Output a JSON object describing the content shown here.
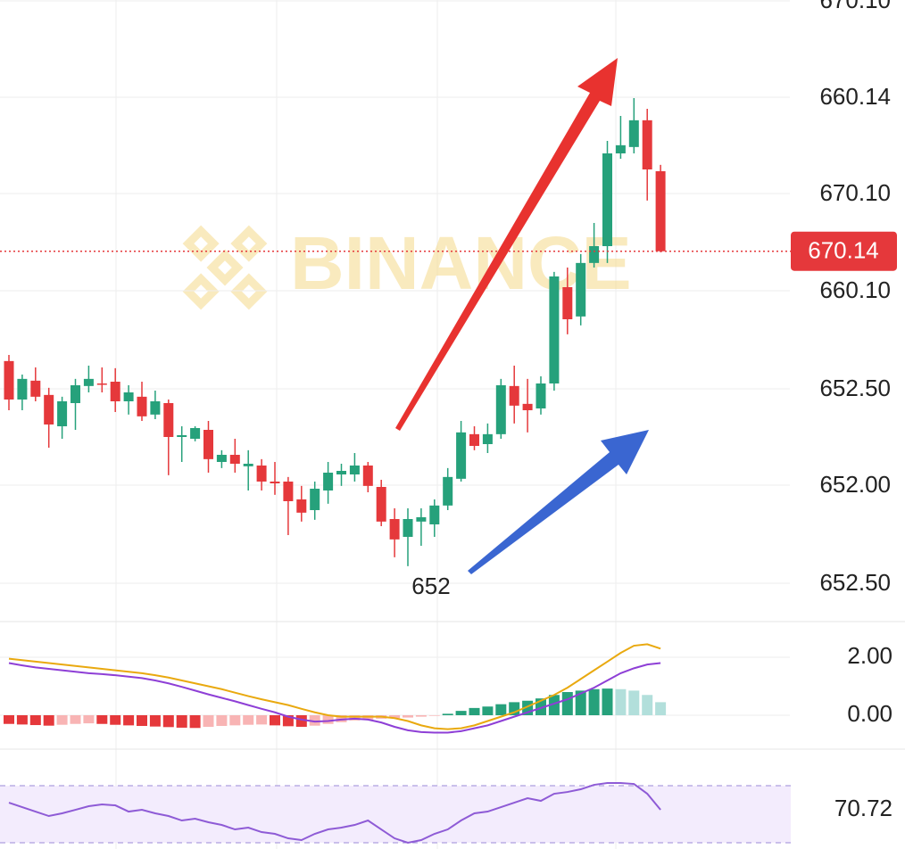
{
  "chart_data": [
    {
      "type": "candlestick",
      "watermark": "BINANCE",
      "y_axis_labels": [
        "670.10",
        "660.14",
        "670.10",
        "660.10",
        "652.50",
        "652.00",
        "652.50"
      ],
      "ylim": [
        655.5,
        680
      ],
      "up_color": "#26a17b",
      "down_color": "#e5383b",
      "open": [
        665.83,
        664.32,
        665.06,
        664.5,
        663.27,
        664.18,
        664.85,
        664.95,
        665.02,
        664.25,
        664.43,
        663.73,
        664.18,
        662.85,
        662.78,
        663.13,
        661.87,
        662.15,
        661.7,
        661.73,
        661.1,
        661.1,
        660.4,
        659.98,
        660.75,
        661.38,
        661.38,
        661.73,
        660.89,
        659.63,
        658.93,
        659.53,
        659.42,
        660.16,
        661.21,
        662.96,
        662.57,
        662.96,
        664.85,
        664.15,
        663.97,
        664.95,
        668.73,
        667.58,
        669.68,
        670.34,
        673.98,
        674.23,
        675.28,
        673.28
      ],
      "high": [
        666.07,
        665.3,
        665.58,
        664.78,
        664.43,
        665.13,
        665.65,
        665.58,
        665.55,
        664.88,
        665.02,
        664.67,
        664.32,
        663.27,
        663.27,
        663.48,
        662.33,
        662.78,
        662.33,
        661.98,
        661.87,
        661.28,
        660.93,
        661.1,
        661.87,
        661.8,
        662.22,
        661.87,
        661.17,
        660.05,
        660.05,
        660.05,
        660.4,
        661.63,
        663.48,
        663.27,
        663.38,
        665.13,
        665.65,
        665.13,
        665.23,
        669.33,
        669.5,
        670.03,
        671.25,
        674.47,
        675.45,
        676.15,
        675.73,
        673.53
      ],
      "low": [
        663.9,
        663.9,
        664.25,
        662.43,
        662.78,
        663.13,
        664.6,
        664.6,
        663.83,
        663.73,
        663.48,
        663.55,
        661.35,
        661.87,
        662.68,
        661.45,
        661.63,
        661.45,
        660.75,
        660.75,
        660.58,
        659.0,
        659.53,
        659.6,
        660.23,
        660.93,
        661.1,
        660.68,
        659.35,
        658.13,
        657.78,
        658.58,
        658.93,
        659.98,
        661.1,
        662.33,
        662.22,
        662.78,
        663.38,
        663.03,
        663.73,
        664.67,
        666.88,
        667.23,
        669.5,
        669.68,
        673.77,
        673.98,
        672.13,
        670.1
      ],
      "close": [
        664.32,
        665.13,
        664.43,
        663.34,
        664.25,
        664.88,
        665.13,
        664.94,
        664.25,
        664.6,
        663.66,
        664.25,
        662.85,
        662.92,
        663.2,
        661.98,
        662.15,
        661.8,
        661.8,
        661.1,
        661.03,
        660.33,
        659.88,
        660.82,
        661.45,
        661.52,
        661.73,
        660.93,
        659.53,
        658.83,
        659.63,
        659.7,
        660.16,
        661.28,
        663.03,
        662.5,
        662.96,
        664.88,
        664.08,
        663.9,
        664.95,
        669.15,
        667.47,
        669.68,
        670.34,
        673.98,
        674.3,
        675.28,
        673.35,
        670.14
      ],
      "current_price": 670.14,
      "annotation": 652
    },
    {
      "type": "macd",
      "ylim": [
        -1.17,
        3.14
      ],
      "yticks": [
        {
          "value": 2,
          "label": "2.00"
        },
        {
          "value": 0,
          "label": "0.00"
        }
      ],
      "colors": {
        "up_rising": "#26a17b",
        "up_falling": "#b2dfdb",
        "down_falling": "#e5383b",
        "down_rising": "#f8b4b4"
      },
      "histogram": [
        -0.3,
        -0.32,
        -0.34,
        -0.36,
        -0.33,
        -0.3,
        -0.28,
        -0.3,
        -0.33,
        -0.35,
        -0.37,
        -0.39,
        -0.41,
        -0.43,
        -0.44,
        -0.4,
        -0.37,
        -0.35,
        -0.33,
        -0.32,
        -0.35,
        -0.38,
        -0.4,
        -0.36,
        -0.3,
        -0.24,
        -0.18,
        -0.15,
        -0.12,
        -0.1,
        -0.08,
        -0.05,
        -0.02,
        0.05,
        0.15,
        0.25,
        0.3,
        0.38,
        0.45,
        0.5,
        0.58,
        0.7,
        0.8,
        0.85,
        0.9,
        0.92,
        0.9,
        0.85,
        0.7,
        0.45
      ],
      "lines": [
        {
          "color": "#e9a90f",
          "values": [
            1.95,
            1.9,
            1.85,
            1.8,
            1.75,
            1.7,
            1.65,
            1.6,
            1.55,
            1.5,
            1.45,
            1.38,
            1.3,
            1.2,
            1.1,
            1.0,
            0.9,
            0.78,
            0.66,
            0.55,
            0.45,
            0.35,
            0.22,
            0.1,
            0.0,
            -0.05,
            -0.05,
            -0.05,
            -0.05,
            -0.1,
            -0.2,
            -0.35,
            -0.45,
            -0.48,
            -0.45,
            -0.35,
            -0.2,
            -0.05,
            0.1,
            0.3,
            0.5,
            0.7,
            0.95,
            1.25,
            1.55,
            1.85,
            2.15,
            2.4,
            2.45,
            2.3
          ]
        },
        {
          "color": "#8e3fd6",
          "values": [
            1.8,
            1.72,
            1.65,
            1.6,
            1.55,
            1.5,
            1.45,
            1.42,
            1.38,
            1.33,
            1.28,
            1.2,
            1.1,
            0.98,
            0.85,
            0.72,
            0.6,
            0.48,
            0.35,
            0.22,
            0.1,
            -0.05,
            -0.15,
            -0.22,
            -0.2,
            -0.15,
            -0.12,
            -0.15,
            -0.25,
            -0.4,
            -0.52,
            -0.58,
            -0.6,
            -0.6,
            -0.55,
            -0.45,
            -0.35,
            -0.2,
            -0.05,
            0.1,
            0.25,
            0.4,
            0.55,
            0.75,
            0.95,
            1.2,
            1.45,
            1.62,
            1.75,
            1.8
          ]
        }
      ]
    },
    {
      "type": "rsi",
      "ylim": [
        55.6,
        92.4
      ],
      "band": [
        58,
        80
      ],
      "band_color": "#f3ecfd",
      "color": "#8e5bd6",
      "values": [
        73.47,
        71.75,
        70.03,
        68.32,
        69.35,
        70.72,
        72.1,
        72.78,
        72.44,
        70.03,
        70.72,
        69.35,
        68.32,
        66.6,
        67.29,
        65.91,
        64.88,
        63.16,
        63.85,
        62.13,
        61.44,
        59.72,
        59.04,
        61.44,
        63.16,
        63.85,
        64.88,
        66.6,
        63.16,
        59.72,
        58.01,
        59.04,
        61.44,
        63.16,
        66.6,
        69.35,
        70.03,
        71.75,
        73.47,
        75.19,
        74.16,
        76.91,
        77.59,
        78.63,
        80.34,
        81.03,
        81.03,
        80.69,
        76.91,
        70.72
      ],
      "current": 70.72
    }
  ]
}
